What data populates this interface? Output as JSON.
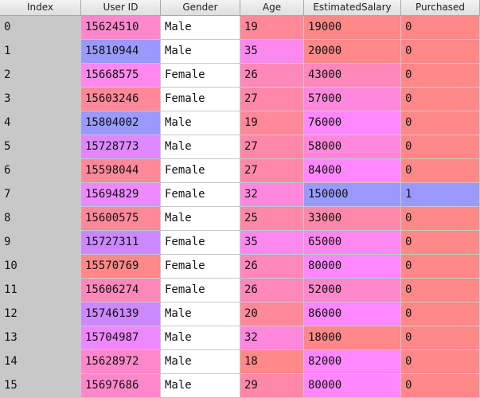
{
  "columns": [
    "Index",
    "User ID",
    "Gender",
    "Age",
    "EstimatedSalary",
    "Purchased"
  ],
  "colors": {
    "userid": [
      "#ff88cc",
      "#9999ff",
      "#ff88ee",
      "#ff8899",
      "#9999ff",
      "#dd88ff",
      "#ff8899",
      "#ee88ff",
      "#ff8899",
      "#cc88ff",
      "#ff8888",
      "#ff88bb",
      "#cc88ff",
      "#ee88ff",
      "#ff88cc",
      "#ff88cc"
    ],
    "age": [
      "#ff8899",
      "#ff88ee",
      "#ff88bb",
      "#ff88aa",
      "#ff8899",
      "#ff88aa",
      "#ff88aa",
      "#ff88dd",
      "#ff88aa",
      "#ff88ee",
      "#ff88bb",
      "#ff88bb",
      "#ff8899",
      "#ff88dd",
      "#ff8888",
      "#ff88aa"
    ],
    "salary": [
      "#ff8888",
      "#ff8888",
      "#ff88bb",
      "#ff88dd",
      "#ff88ff",
      "#ff88dd",
      "#ff88ff",
      "#9999ff",
      "#ff88aa",
      "#ff88ee",
      "#ff88ff",
      "#ff88cc",
      "#ff88ff",
      "#ff8888",
      "#ff88ff",
      "#ff88ff"
    ],
    "purchased": [
      "#ff8888",
      "#ff8888",
      "#ff8888",
      "#ff8888",
      "#ff8888",
      "#ff8888",
      "#ff8888",
      "#9999ff",
      "#ff8888",
      "#ff8888",
      "#ff8888",
      "#ff8888",
      "#ff8888",
      "#ff8888",
      "#ff8888",
      "#ff8888"
    ]
  },
  "rows": [
    {
      "index": "0",
      "user_id": "15624510",
      "gender": "Male",
      "age": "19",
      "salary": "19000",
      "purchased": "0"
    },
    {
      "index": "1",
      "user_id": "15810944",
      "gender": "Male",
      "age": "35",
      "salary": "20000",
      "purchased": "0"
    },
    {
      "index": "2",
      "user_id": "15668575",
      "gender": "Female",
      "age": "26",
      "salary": "43000",
      "purchased": "0"
    },
    {
      "index": "3",
      "user_id": "15603246",
      "gender": "Female",
      "age": "27",
      "salary": "57000",
      "purchased": "0"
    },
    {
      "index": "4",
      "user_id": "15804002",
      "gender": "Male",
      "age": "19",
      "salary": "76000",
      "purchased": "0"
    },
    {
      "index": "5",
      "user_id": "15728773",
      "gender": "Male",
      "age": "27",
      "salary": "58000",
      "purchased": "0"
    },
    {
      "index": "6",
      "user_id": "15598044",
      "gender": "Female",
      "age": "27",
      "salary": "84000",
      "purchased": "0"
    },
    {
      "index": "7",
      "user_id": "15694829",
      "gender": "Female",
      "age": "32",
      "salary": "150000",
      "purchased": "1"
    },
    {
      "index": "8",
      "user_id": "15600575",
      "gender": "Male",
      "age": "25",
      "salary": "33000",
      "purchased": "0"
    },
    {
      "index": "9",
      "user_id": "15727311",
      "gender": "Female",
      "age": "35",
      "salary": "65000",
      "purchased": "0"
    },
    {
      "index": "10",
      "user_id": "15570769",
      "gender": "Female",
      "age": "26",
      "salary": "80000",
      "purchased": "0"
    },
    {
      "index": "11",
      "user_id": "15606274",
      "gender": "Female",
      "age": "26",
      "salary": "52000",
      "purchased": "0"
    },
    {
      "index": "12",
      "user_id": "15746139",
      "gender": "Male",
      "age": "20",
      "salary": "86000",
      "purchased": "0"
    },
    {
      "index": "13",
      "user_id": "15704987",
      "gender": "Male",
      "age": "32",
      "salary": "18000",
      "purchased": "0"
    },
    {
      "index": "14",
      "user_id": "15628972",
      "gender": "Male",
      "age": "18",
      "salary": "82000",
      "purchased": "0"
    },
    {
      "index": "15",
      "user_id": "15697686",
      "gender": "Male",
      "age": "29",
      "salary": "80000",
      "purchased": "0"
    }
  ]
}
